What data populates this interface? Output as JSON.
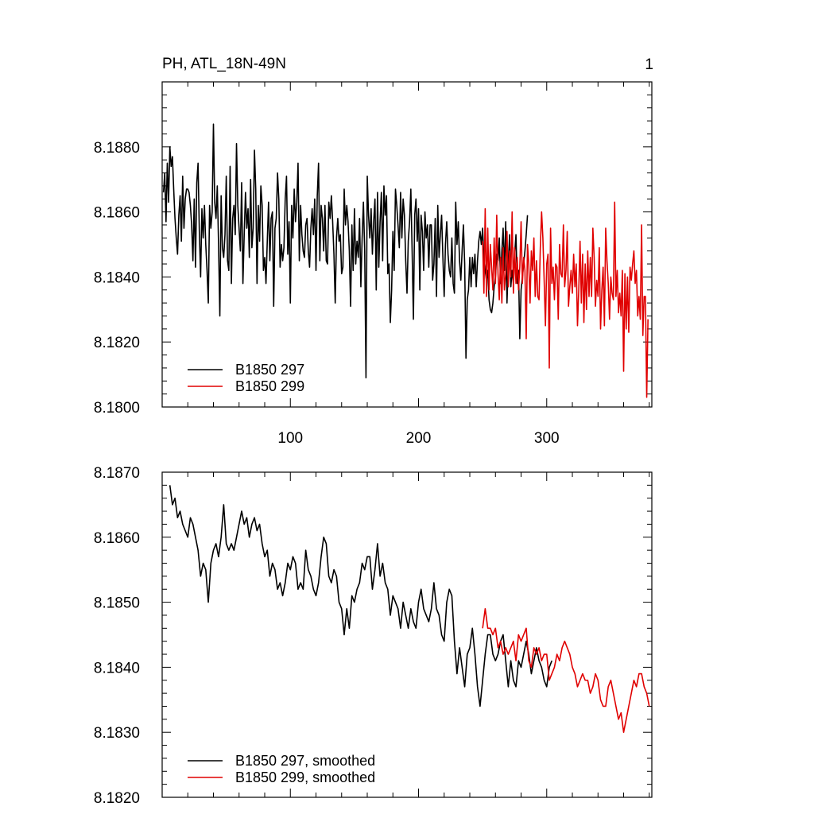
{
  "chart_data": [
    {
      "type": "line",
      "title": "PH, ATL_18N-49N",
      "corner_label": "1",
      "xlim": [
        0,
        382
      ],
      "ylim": [
        8.18,
        8.19
      ],
      "x_major_ticks": [
        100,
        200,
        300
      ],
      "x_tick_labels": [
        "100",
        "200",
        "300"
      ],
      "y_major_ticks": [
        8.18,
        8.182,
        8.184,
        8.186,
        8.188
      ],
      "y_tick_labels": [
        "8.1800",
        "8.1820",
        "8.1840",
        "8.1860",
        "8.1880"
      ],
      "legend": [
        {
          "label": "B1850 297",
          "color": "#000000"
        },
        {
          "label": "B1850 299",
          "color": "#e00000"
        }
      ],
      "series": [
        {
          "name": "B1850 297",
          "color": "#000000",
          "x_start": 1,
          "values": [
            8.1866,
            8.1872,
            8.1857,
            8.1875,
            8.1863,
            8.188,
            8.1874,
            8.1877,
            8.1867,
            8.1858,
            8.1852,
            8.1847,
            8.1859,
            8.1865,
            8.1851,
            8.1871,
            8.1855,
            8.1864,
            8.1867,
            8.1867,
            8.1866,
            8.1862,
            8.1856,
            8.1845,
            8.1864,
            8.1843,
            8.1869,
            8.1875,
            8.1854,
            8.184,
            8.1861,
            8.1852,
            8.1862,
            8.185,
            8.1842,
            8.1832,
            8.1862,
            8.1855,
            8.186,
            8.1887,
            8.1863,
            8.1858,
            8.1868,
            8.185,
            8.1828,
            8.1865,
            8.1849,
            8.1846,
            8.1853,
            8.1871,
            8.1845,
            8.1842,
            8.1874,
            8.1838,
            8.1858,
            8.1862,
            8.1853,
            8.1881,
            8.1862,
            8.1855,
            8.1848,
            8.1869,
            8.1838,
            8.1853,
            8.1866,
            8.1855,
            8.1861,
            8.1846,
            8.187,
            8.1849,
            8.1855,
            8.1879,
            8.1867,
            8.1838,
            8.1862,
            8.1851,
            8.1868,
            8.1862,
            8.1842,
            8.1846,
            8.1838,
            8.1851,
            8.1863,
            8.1845,
            8.1858,
            8.186,
            8.1831,
            8.1855,
            8.1858,
            8.1872,
            8.1864,
            8.1843,
            8.185,
            8.1845,
            8.1849,
            8.1864,
            8.1871,
            8.1847,
            8.1857,
            8.1832,
            8.1862,
            8.1852,
            8.1867,
            8.1857,
            8.1863,
            8.1875,
            8.1845,
            8.1862,
            8.1853,
            8.1848,
            8.1846,
            8.1856,
            8.1858,
            8.1848,
            8.1843,
            8.1855,
            8.1861,
            8.1853,
            8.1864,
            8.1842,
            8.1865,
            8.1875,
            8.1845,
            8.1862,
            8.1858,
            8.1848,
            8.1862,
            8.1845,
            8.1844,
            8.1863,
            8.1858,
            8.1865,
            8.1857,
            8.1847,
            8.1832,
            8.1852,
            8.1858,
            8.1851,
            8.1853,
            8.1841,
            8.1843,
            8.1867,
            8.1856,
            8.1862,
            8.1857,
            8.1848,
            8.1831,
            8.1856,
            8.1842,
            8.1861,
            8.1844,
            8.1851,
            8.1846,
            8.1858,
            8.1837,
            8.1852,
            8.1863,
            8.1848,
            8.1809,
            8.1871,
            8.1859,
            8.1852,
            8.1861,
            8.1847,
            8.1857,
            8.1864,
            8.1836,
            8.1866,
            8.1843,
            8.1857,
            8.1866,
            8.1845,
            8.1868,
            8.1859,
            8.1865,
            8.1841,
            8.1844,
            8.1826,
            8.1836,
            8.1854,
            8.1842,
            8.1867,
            8.1862,
            8.1856,
            8.1849,
            8.1866,
            8.1852,
            8.1864,
            8.1859,
            8.1845,
            8.1835,
            8.1851,
            8.1857,
            8.1867,
            8.1848,
            8.1827,
            8.1859,
            8.1864,
            8.1851,
            8.1861,
            8.1836,
            8.1859,
            8.1854,
            8.1842,
            8.186,
            8.1852,
            8.1856,
            8.1843,
            8.1856,
            8.1856,
            8.1839,
            8.1844,
            8.1858,
            8.1834,
            8.1862,
            8.1846,
            8.1853,
            8.1859,
            8.1846,
            8.1834,
            8.185,
            8.1857,
            8.1847,
            8.1842,
            8.184,
            8.1852,
            8.1838,
            8.1835,
            8.1863,
            8.185,
            8.1857,
            8.1845,
            8.1839,
            8.1848,
            8.1856,
            8.1844,
            8.1815,
            8.1833,
            8.1836,
            8.1846,
            8.1837,
            8.1846,
            8.1841,
            8.1847,
            8.1837,
            8.1845,
            8.1851,
            8.1854,
            8.185,
            8.1855,
            8.1845,
            8.1842,
            8.1839,
            8.1842,
            8.1833,
            8.183,
            8.1829,
            8.1832,
            8.1837,
            8.184,
            8.1847,
            8.1845,
            8.1852,
            8.1838,
            8.1848,
            8.1855,
            8.1842,
            8.1857,
            8.1832,
            8.1844,
            8.1853,
            8.1837,
            8.1842,
            8.1838,
            8.1847,
            8.1853,
            8.1838,
            8.1842,
            8.1821,
            8.1836,
            8.184,
            8.1844,
            8.1848,
            8.1853,
            8.1859
          ]
        },
        {
          "name": "B1850 299",
          "color": "#e00000",
          "x_start": 250,
          "values": [
            8.1851,
            8.1835,
            8.1861,
            8.1834,
            8.1855,
            8.1836,
            8.185,
            8.1843,
            8.1836,
            8.1852,
            8.1838,
            8.1859,
            8.1841,
            8.1833,
            8.1846,
            8.1832,
            8.1849,
            8.1836,
            8.1841,
            8.1854,
            8.1837,
            8.1848,
            8.184,
            8.186,
            8.1835,
            8.1849,
            8.1838,
            8.1846,
            8.1836,
            8.1843,
            8.1857,
            8.1838,
            8.1846,
            8.1842,
            8.1821,
            8.185,
            8.1844,
            8.1832,
            8.1848,
            8.1842,
            8.1852,
            8.1834,
            8.1845,
            8.1834,
            8.1833,
            8.1849,
            8.186,
            8.1852,
            8.1839,
            8.1825,
            8.1844,
            8.1847,
            8.1812,
            8.1855,
            8.1838,
            8.1843,
            8.1833,
            8.1844,
            8.1843,
            8.1827,
            8.185,
            8.1841,
            8.184,
            8.1856,
            8.1837,
            8.1842,
            8.1854,
            8.1831,
            8.1837,
            8.1842,
            8.1835,
            8.1847,
            8.1837,
            8.1844,
            8.1825,
            8.1836,
            8.1851,
            8.1832,
            8.1847,
            8.1826,
            8.1844,
            8.183,
            8.1848,
            8.1834,
            8.1846,
            8.1834,
            8.1855,
            8.1846,
            8.1831,
            8.1839,
            8.1834,
            8.1849,
            8.1824,
            8.1836,
            8.1843,
            8.1825,
            8.1855,
            8.1845,
            8.1838,
            8.1827,
            8.184,
            8.1835,
            8.1833,
            8.1863,
            8.1834,
            8.1842,
            8.1829,
            8.1835,
            8.1828,
            8.1842,
            8.1811,
            8.1841,
            8.1824,
            8.184,
            8.1823,
            8.1843,
            8.1839,
            8.1844,
            8.1848,
            8.1838,
            8.1842,
            8.1828,
            8.1834,
            8.1827,
            8.1856,
            8.1822,
            8.1834,
            8.1834,
            8.1803,
            8.1827
          ]
        }
      ]
    },
    {
      "type": "line",
      "xlim": [
        0,
        382
      ],
      "ylim": [
        8.182,
        8.187
      ],
      "x_major_ticks": [
        100,
        200,
        300
      ],
      "y_major_ticks": [
        8.182,
        8.183,
        8.184,
        8.185,
        8.186,
        8.187
      ],
      "y_tick_labels": [
        "8.1820",
        "8.1830",
        "8.1840",
        "8.1850",
        "8.1860",
        "8.1870"
      ],
      "legend": [
        {
          "label": "B1850 297, smoothed",
          "color": "#000000"
        },
        {
          "label": "B1850 299, smoothed",
          "color": "#e00000"
        }
      ],
      "series": [
        {
          "name": "B1850 297, smoothed",
          "color": "#000000",
          "x": [
            6,
            8,
            10,
            12,
            14,
            16,
            18,
            20,
            22,
            24,
            26,
            28,
            30,
            32,
            34,
            36,
            38,
            40,
            42,
            44,
            46,
            48,
            50,
            52,
            54,
            56,
            58,
            60,
            62,
            64,
            66,
            68,
            70,
            72,
            74,
            76,
            78,
            80,
            82,
            84,
            86,
            88,
            90,
            92,
            94,
            96,
            98,
            100,
            102,
            104,
            106,
            108,
            110,
            112,
            114,
            116,
            118,
            120,
            122,
            124,
            126,
            128,
            130,
            132,
            134,
            136,
            138,
            140,
            142,
            144,
            146,
            148,
            150,
            152,
            154,
            156,
            158,
            160,
            162,
            164,
            166,
            168,
            170,
            172,
            174,
            176,
            178,
            180,
            182,
            184,
            186,
            188,
            190,
            192,
            194,
            196,
            198,
            200,
            202,
            204,
            206,
            208,
            210,
            212,
            214,
            216,
            218,
            220,
            222,
            224,
            226,
            228,
            230,
            232,
            234,
            236,
            238,
            240,
            242,
            244,
            246,
            248,
            250,
            252,
            254,
            256,
            258,
            260,
            262,
            264,
            266,
            268,
            270,
            272,
            274,
            276,
            278,
            280,
            282,
            284,
            286,
            288,
            290,
            292,
            294,
            296,
            298,
            300,
            302,
            304
          ],
          "values": [
            8.1868,
            8.1865,
            8.1866,
            8.1863,
            8.1864,
            8.1862,
            8.1861,
            8.186,
            8.1863,
            8.1862,
            8.186,
            8.1858,
            8.1854,
            8.1856,
            8.1855,
            8.185,
            8.1856,
            8.1858,
            8.1859,
            8.1857,
            8.186,
            8.1865,
            8.1859,
            8.1858,
            8.1859,
            8.1858,
            8.186,
            8.1862,
            8.1864,
            8.1862,
            8.1863,
            8.186,
            8.1862,
            8.1863,
            8.1861,
            8.1862,
            8.1859,
            8.1857,
            8.1858,
            8.1854,
            8.1856,
            8.1855,
            8.1852,
            8.1853,
            8.1851,
            8.1853,
            8.1856,
            8.1855,
            8.1857,
            8.1856,
            8.1852,
            8.1853,
            8.1852,
            8.1858,
            8.1855,
            8.1854,
            8.1852,
            8.1851,
            8.1853,
            8.1857,
            8.186,
            8.1859,
            8.1854,
            8.1853,
            8.1855,
            8.1854,
            8.185,
            8.1849,
            8.1845,
            8.1849,
            8.1846,
            8.1851,
            8.185,
            8.1852,
            8.1853,
            8.1856,
            8.1855,
            8.1857,
            8.1857,
            8.1852,
            8.1855,
            8.1859,
            8.1854,
            8.1856,
            8.1853,
            8.1852,
            8.1848,
            8.1851,
            8.185,
            8.1849,
            8.1846,
            8.185,
            8.1848,
            8.1846,
            8.1849,
            8.1847,
            8.1846,
            8.185,
            8.1852,
            8.1849,
            8.1848,
            8.1847,
            8.1849,
            8.1853,
            8.1849,
            8.1848,
            8.1845,
            8.1844,
            8.185,
            8.1852,
            8.1851,
            8.1844,
            8.1839,
            8.1843,
            8.184,
            8.1837,
            8.1842,
            8.1843,
            8.1846,
            8.1842,
            8.1837,
            8.1834,
            8.1838,
            8.1842,
            8.1845,
            8.1845,
            8.1842,
            8.1841,
            8.1842,
            8.1844,
            8.1845,
            8.1841,
            8.1837,
            8.1841,
            8.1838,
            8.1837,
            8.1841,
            8.184,
            8.1842,
            8.1844,
            8.1842,
            8.1839,
            8.1841,
            8.1843,
            8.1841,
            8.184,
            8.1838,
            8.1837,
            8.184,
            8.1841
          ]
        },
        {
          "name": "B1850 299, smoothed",
          "color": "#e00000",
          "x": [
            250,
            252,
            254,
            256,
            258,
            260,
            262,
            264,
            266,
            268,
            270,
            272,
            274,
            276,
            278,
            280,
            282,
            284,
            286,
            288,
            290,
            292,
            294,
            296,
            298,
            300,
            302,
            304,
            306,
            308,
            310,
            312,
            314,
            316,
            318,
            320,
            322,
            324,
            326,
            328,
            330,
            332,
            334,
            336,
            338,
            340,
            342,
            344,
            346,
            348,
            350,
            352,
            354,
            356,
            358,
            360,
            362,
            364,
            366,
            368,
            370,
            372,
            374,
            376,
            378,
            380
          ],
          "values": [
            8.1846,
            8.1849,
            8.1846,
            8.1846,
            8.1845,
            8.1846,
            8.1843,
            8.1844,
            8.1842,
            8.1843,
            8.1842,
            8.1843,
            8.1844,
            8.1841,
            8.1845,
            8.1844,
            8.1845,
            8.1846,
            8.1841,
            8.184,
            8.1843,
            8.1842,
            8.1843,
            8.1841,
            8.1842,
            8.1842,
            8.1838,
            8.1839,
            8.184,
            8.1842,
            8.1841,
            8.1843,
            8.1844,
            8.1843,
            8.1842,
            8.184,
            8.1839,
            8.1837,
            8.1838,
            8.1839,
            8.1838,
            8.1838,
            8.1836,
            8.1837,
            8.1839,
            8.1838,
            8.1835,
            8.1834,
            8.1834,
            8.1837,
            8.1838,
            8.1836,
            8.1834,
            8.1832,
            8.1833,
            8.183,
            8.1832,
            8.1834,
            8.1836,
            8.1838,
            8.1837,
            8.1839,
            8.1839,
            8.1837,
            8.1836,
            8.1834
          ]
        }
      ]
    }
  ]
}
